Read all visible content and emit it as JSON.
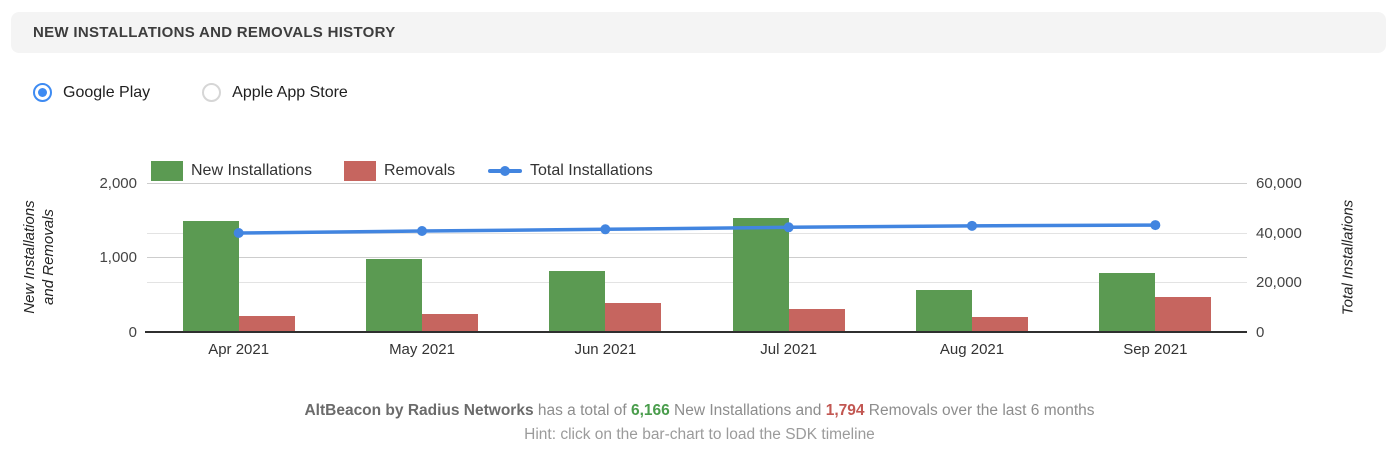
{
  "header": {
    "title": "NEW INSTALLATIONS AND REMOVALS HISTORY"
  },
  "store_toggle": {
    "options": [
      {
        "label": "Google Play",
        "selected": true
      },
      {
        "label": "Apple App Store",
        "selected": false
      }
    ]
  },
  "chart_data": {
    "type": "bar",
    "categories": [
      "Apr 2021",
      "May 2021",
      "Jun 2021",
      "Jul 2021",
      "Aug 2021",
      "Sep 2021"
    ],
    "series": [
      {
        "name": "New Installations",
        "type": "bar",
        "axis": "left",
        "color": "#5b9a52",
        "values": [
          1490,
          975,
          820,
          1535,
          560,
          786
        ]
      },
      {
        "name": "Removals",
        "type": "bar",
        "axis": "left",
        "color": "#c6655f",
        "values": [
          212,
          230,
          390,
          305,
          195,
          462
        ]
      },
      {
        "name": "Total Installations",
        "type": "line",
        "axis": "right",
        "color": "#4285e0",
        "values": [
          39800,
          40600,
          41300,
          42100,
          42700,
          43000
        ]
      }
    ],
    "left_axis": {
      "title_line1": "New Installations",
      "title_line2": "and Removals",
      "ticks": [
        0,
        1000,
        2000
      ],
      "tick_labels": [
        "0",
        "1,000",
        "2,000"
      ],
      "range": [
        0,
        2000
      ]
    },
    "right_axis": {
      "title": "Total Installations",
      "ticks": [
        0,
        20000,
        40000,
        60000
      ],
      "tick_labels": [
        "0",
        "20,000",
        "40,000",
        "60,000"
      ],
      "range": [
        0,
        60000
      ]
    },
    "legend_position": "top",
    "grid": true
  },
  "summary": {
    "app_name": "AltBeacon by Radius Networks",
    "text_1": " has a total of ",
    "installs_value": "6,166",
    "text_2": " New Installations and ",
    "removals_value": "1,794",
    "text_3": " Removals over the last 6 months",
    "hint": "Hint: click on the bar-chart to load the SDK timeline"
  }
}
